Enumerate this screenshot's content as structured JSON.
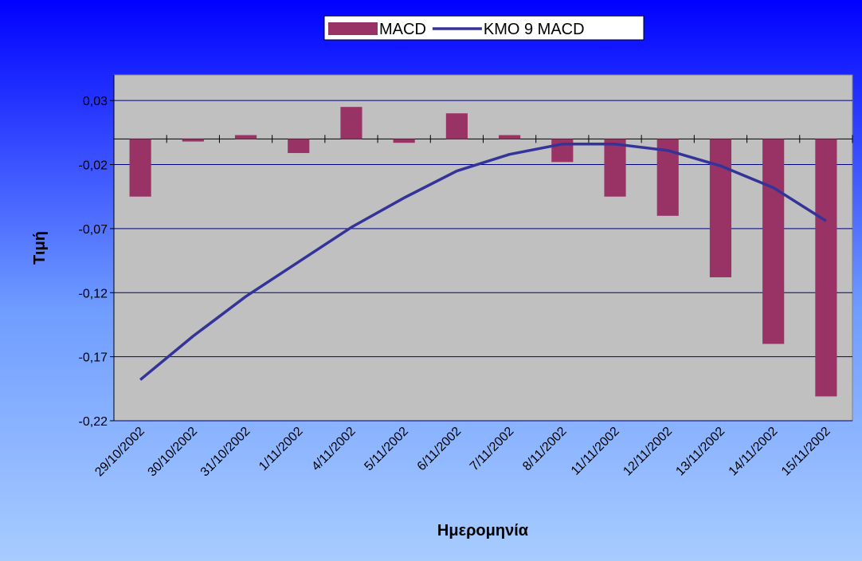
{
  "chart_data": {
    "type": "bar_line",
    "x_label": "Ημερομηνία",
    "y_label": "Τιμή",
    "categories": [
      "29/10/2002",
      "30/10/2002",
      "31/10/2002",
      "1/11/2002",
      "4/11/2002",
      "5/11/2002",
      "6/11/2002",
      "7/11/2002",
      "8/11/2002",
      "11/11/2002",
      "12/11/2002",
      "13/11/2002",
      "14/11/2002",
      "15/11/2002"
    ],
    "series": [
      {
        "name": "MACD",
        "type": "bar",
        "color": "#993366",
        "values": [
          -0.045,
          -0.002,
          0.003,
          -0.011,
          0.025,
          -0.003,
          0.02,
          0.003,
          -0.018,
          -0.045,
          -0.06,
          -0.108,
          -0.16,
          -0.201
        ]
      },
      {
        "name": "KMO 9 MACD",
        "type": "line",
        "color": "#333399",
        "values": [
          -0.188,
          -0.154,
          -0.123,
          -0.096,
          -0.069,
          -0.046,
          -0.025,
          -0.012,
          -0.004,
          -0.004,
          -0.009,
          -0.021,
          -0.038,
          -0.064
        ]
      }
    ],
    "ylim": [
      -0.22,
      0.05
    ],
    "yticks": [
      {
        "value": 0.03,
        "label": "0,03"
      },
      {
        "value": -0.02,
        "label": "-0,02"
      },
      {
        "value": -0.07,
        "label": "-0,07"
      },
      {
        "value": -0.12,
        "label": "-0,12"
      },
      {
        "value": -0.17,
        "label": "-0,17"
      },
      {
        "value": -0.22,
        "label": "-0,22"
      }
    ],
    "grid": true,
    "legend": "top"
  }
}
